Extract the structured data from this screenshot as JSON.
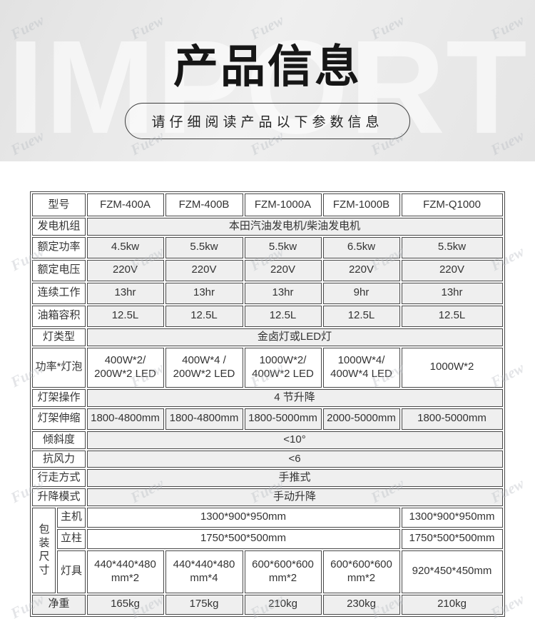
{
  "banner": {
    "watermark_word": "IMPORT",
    "title": "产品信息",
    "subtitle": "请仔细阅读产品以下参数信息"
  },
  "watermark": {
    "text": "Fuew"
  },
  "colors": {
    "banner_bg": "#e7e7e7",
    "table_border": "#484848",
    "cell_gray": "#efefef"
  },
  "table": {
    "model": {
      "label": "型号",
      "values": [
        "FZM-400A",
        "FZM-400B",
        "FZM-1000A",
        "FZM-1000B",
        "FZM-Q1000"
      ]
    },
    "generator": {
      "label": "发电机组",
      "value": "本田汽油发电机/柴油发电机"
    },
    "rated_power": {
      "label": "额定功率",
      "values": [
        "4.5kw",
        "5.5kw",
        "5.5kw",
        "6.5kw",
        "5.5kw"
      ]
    },
    "rated_voltage": {
      "label": "额定电压",
      "values": [
        "220V",
        "220V",
        "220V",
        "220V",
        "220V"
      ]
    },
    "continuous_work": {
      "label": "连续工作",
      "values": [
        "13hr",
        "13hr",
        "13hr",
        "9hr",
        "13hr"
      ]
    },
    "tank_capacity": {
      "label": "油箱容积",
      "values": [
        "12.5L",
        "12.5L",
        "12.5L",
        "12.5L",
        "12.5L"
      ]
    },
    "lamp_type": {
      "label": "灯类型",
      "value": "金卤灯或LED灯"
    },
    "power_bulb": {
      "label": "功率*灯泡",
      "values": [
        "400W*2/\n200W*2 LED",
        "400W*4 /\n200W*2 LED",
        "1000W*2/\n400W*2 LED",
        "1000W*4/\n400W*4 LED",
        "1000W*2"
      ]
    },
    "frame_operation": {
      "label": "灯架操作",
      "value": "4 节升降"
    },
    "frame_extension": {
      "label": "灯架伸缩",
      "values": [
        "1800-4800mm",
        "1800-4800mm",
        "1800-5000mm",
        "2000-5000mm",
        "1800-5000mm"
      ]
    },
    "tilt": {
      "label": "倾斜度",
      "value": "<10°"
    },
    "wind_resistance": {
      "label": "抗风力",
      "value": "<6"
    },
    "walking_mode": {
      "label": "行走方式",
      "value": "手推式"
    },
    "lifting_mode": {
      "label": "升降模式",
      "value": "手动升降"
    },
    "packing": {
      "label": "包装\n尺寸",
      "host": {
        "label": "主机",
        "span_value": "1300*900*950mm",
        "last_value": "1300*900*950mm"
      },
      "column": {
        "label": "立柱",
        "span_value": "1750*500*500mm",
        "last_value": "1750*500*500mm"
      },
      "lamps": {
        "label": "灯具",
        "values": [
          "440*440*480\nmm*2",
          "440*440*480\nmm*4",
          "600*600*600\nmm*2",
          "600*600*600\nmm*2",
          "920*450*450mm"
        ]
      }
    },
    "net_weight": {
      "label": "净重",
      "values": [
        "165kg",
        "175kg",
        "210kg",
        "230kg",
        "210kg"
      ]
    }
  }
}
